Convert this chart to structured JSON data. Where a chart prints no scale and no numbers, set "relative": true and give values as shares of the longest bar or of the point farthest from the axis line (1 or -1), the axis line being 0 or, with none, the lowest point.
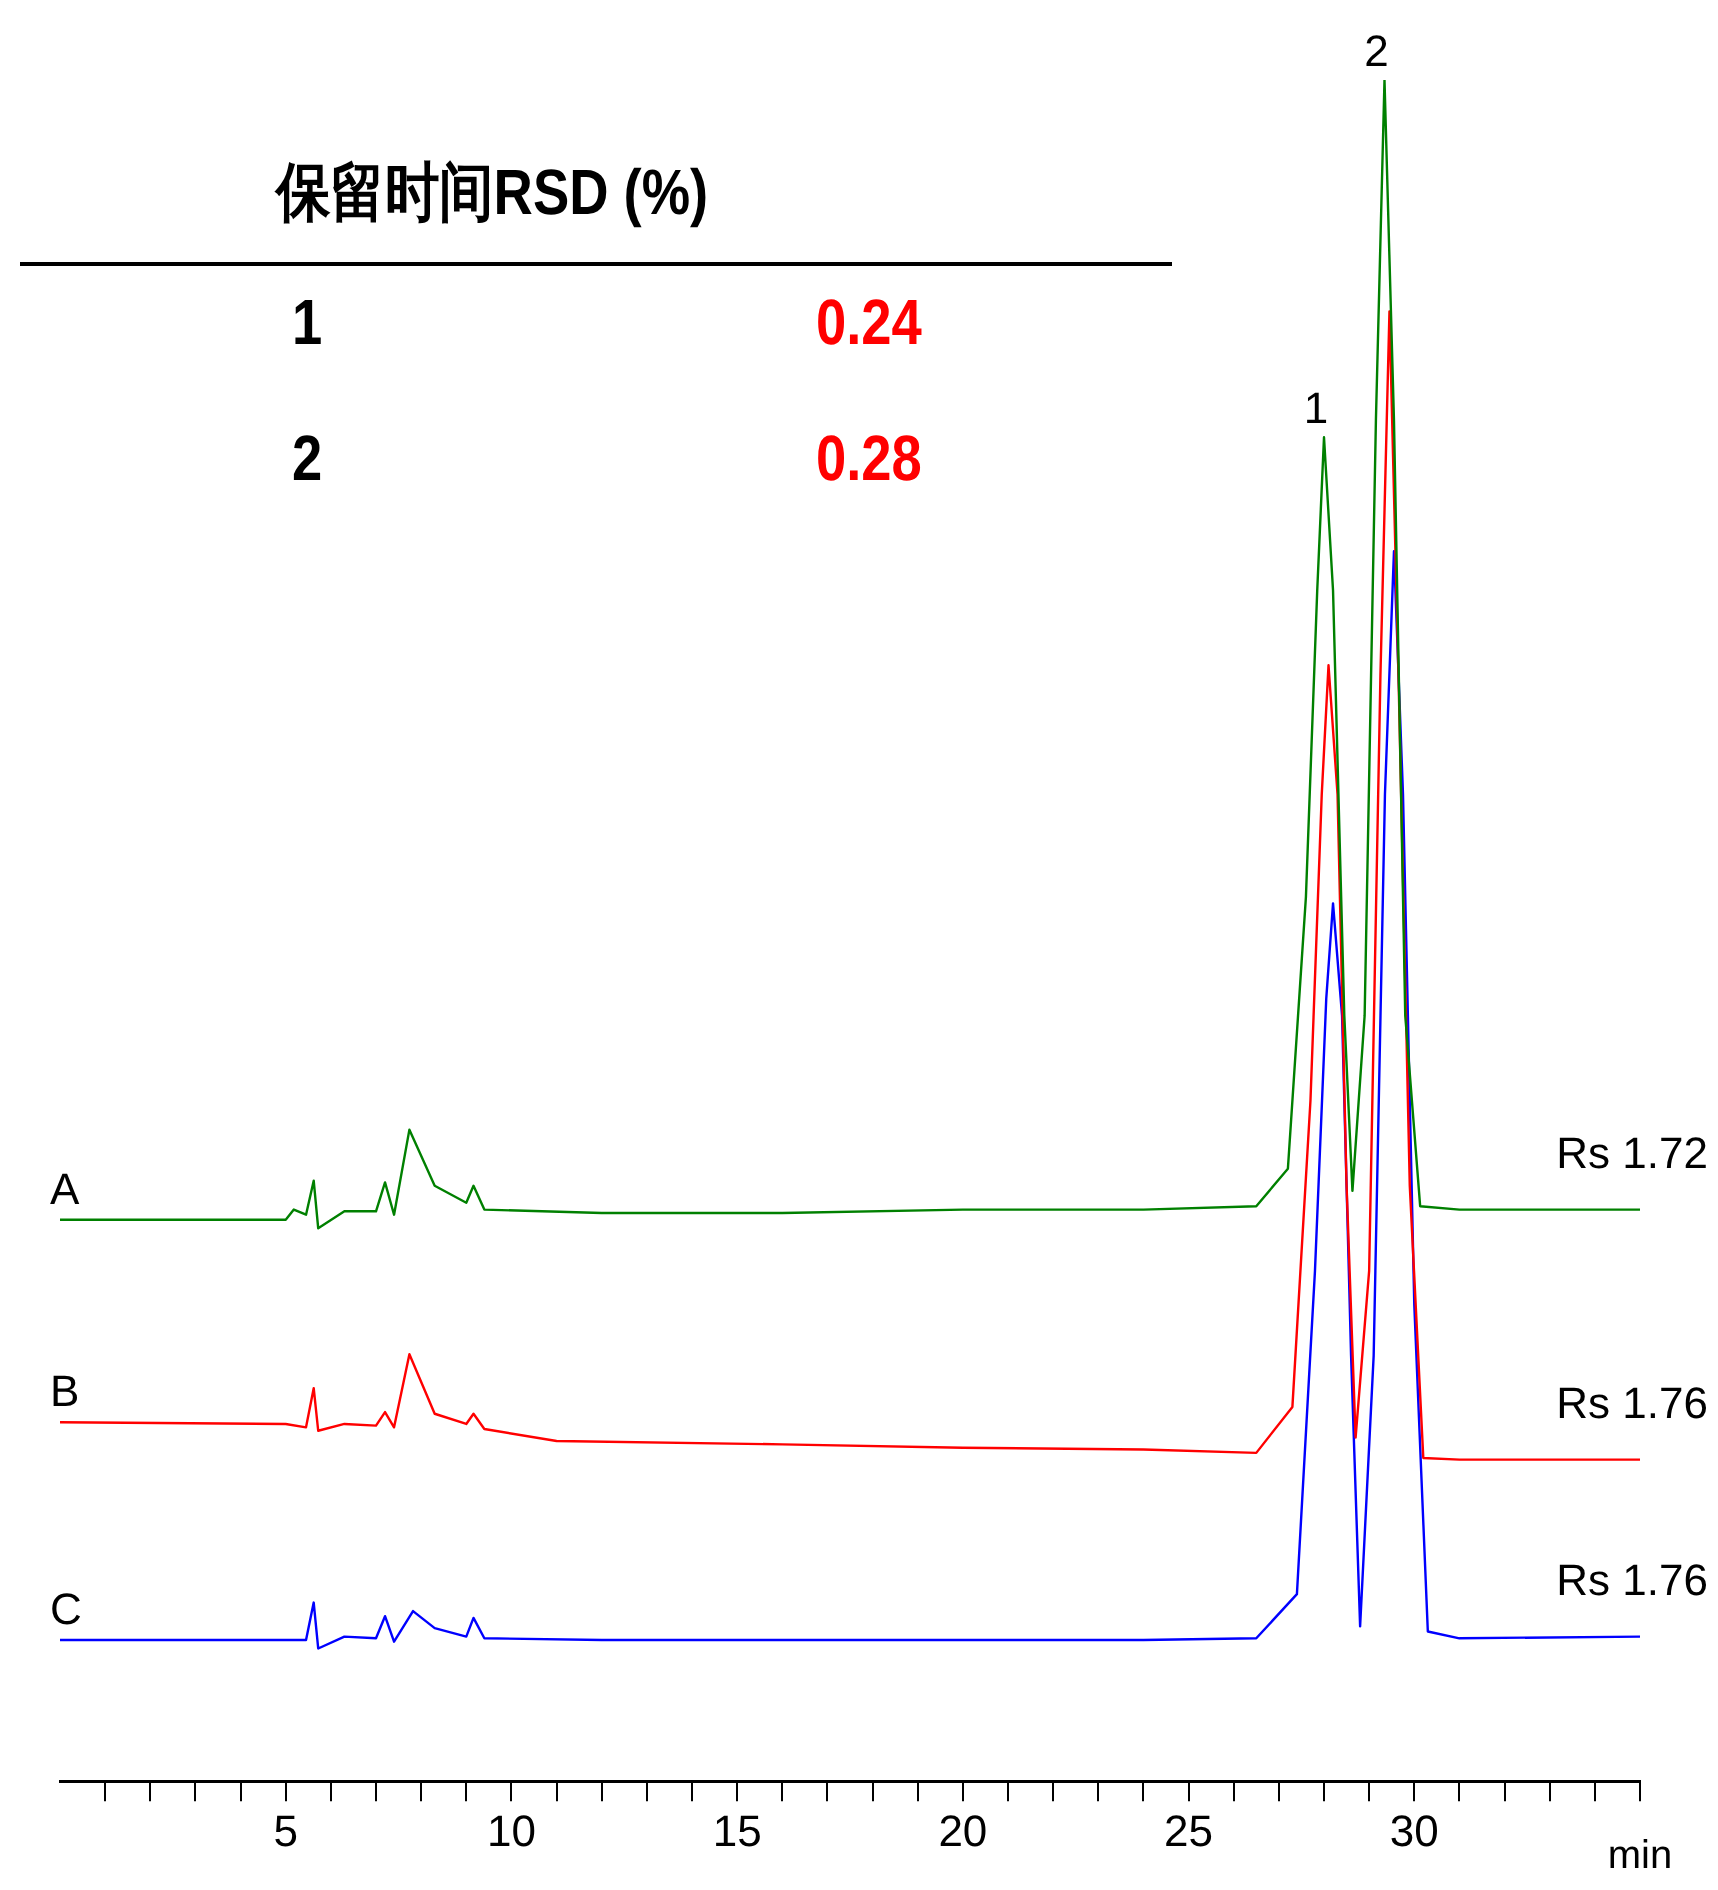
{
  "chart_data": {
    "type": "line",
    "relative": true,
    "xlabel": "min",
    "xlim": [
      0,
      35
    ],
    "xticks": [
      {
        "value": 1,
        "label": null
      },
      {
        "value": 2,
        "label": null
      },
      {
        "value": 3,
        "label": null
      },
      {
        "value": 4,
        "label": null
      },
      5,
      {
        "value": 6,
        "label": null
      },
      {
        "value": 7,
        "label": null
      },
      {
        "value": 8,
        "label": null
      },
      {
        "value": 9,
        "label": null
      },
      10,
      {
        "value": 11,
        "label": null
      },
      {
        "value": 12,
        "label": null
      },
      {
        "value": 13,
        "label": null
      },
      {
        "value": 14,
        "label": null
      },
      15,
      {
        "value": 16,
        "label": null
      },
      {
        "value": 17,
        "label": null
      },
      {
        "value": 18,
        "label": null
      },
      {
        "value": 19,
        "label": null
      },
      20,
      {
        "value": 21,
        "label": null
      },
      {
        "value": 22,
        "label": null
      },
      {
        "value": 23,
        "label": null
      },
      {
        "value": 24,
        "label": null
      },
      25,
      {
        "value": 26,
        "label": null
      },
      {
        "value": 27,
        "label": null
      },
      {
        "value": 28,
        "label": null
      },
      {
        "value": 29,
        "label": null
      },
      30,
      {
        "value": 31,
        "label": null
      },
      {
        "value": 32,
        "label": null
      },
      {
        "value": 33,
        "label": null
      },
      {
        "value": 34,
        "label": null
      },
      {
        "value": 35,
        "label": null
      }
    ],
    "grid": false,
    "legend": false,
    "tick_labels": "x",
    "marker": "none",
    "line_style": "solid",
    "series": [
      {
        "name": "A",
        "color": "#008000",
        "x": [
          0,
          5.0,
          5.18,
          5.45,
          5.62,
          5.72,
          6.3,
          7.0,
          7.2,
          7.4,
          7.74,
          8.3,
          9.0,
          9.16,
          9.4,
          12,
          16,
          20,
          24,
          26.5,
          27.2,
          27.6,
          27.85,
          28.0,
          28.2,
          28.45,
          28.63,
          28.9,
          29.15,
          29.34,
          29.55,
          29.8,
          30.13,
          31,
          35
        ],
        "values": [
          0.33,
          0.33,
          0.336,
          0.333,
          0.353,
          0.325,
          0.335,
          0.335,
          0.352,
          0.333,
          0.383,
          0.35,
          0.34,
          0.35,
          0.336,
          0.334,
          0.334,
          0.336,
          0.336,
          0.338,
          0.36,
          0.52,
          0.7,
          0.79,
          0.7,
          0.45,
          0.347,
          0.45,
          0.8,
          1.0,
          0.8,
          0.45,
          0.338,
          0.336,
          0.336
        ]
      },
      {
        "name": "B",
        "color": "#ff0000",
        "x": [
          0,
          5.0,
          5.45,
          5.62,
          5.72,
          6.3,
          7.0,
          7.2,
          7.4,
          7.74,
          8.3,
          9.0,
          9.16,
          9.4,
          11,
          16,
          20,
          24,
          26.5,
          27.3,
          27.7,
          27.95,
          28.1,
          28.3,
          28.5,
          28.7,
          29.0,
          29.25,
          29.45,
          29.65,
          29.9,
          30.2,
          31,
          35
        ],
        "values": [
          0.211,
          0.21,
          0.208,
          0.231,
          0.206,
          0.21,
          0.209,
          0.217,
          0.208,
          0.251,
          0.216,
          0.21,
          0.216,
          0.207,
          0.2,
          0.198,
          0.196,
          0.195,
          0.193,
          0.22,
          0.4,
          0.58,
          0.656,
          0.58,
          0.35,
          0.202,
          0.3,
          0.65,
          0.864,
          0.65,
          0.35,
          0.19,
          0.189,
          0.189
        ]
      },
      {
        "name": "C",
        "color": "#0000ff",
        "x": [
          0,
          5.0,
          5.45,
          5.62,
          5.72,
          6.3,
          7.0,
          7.2,
          7.4,
          7.82,
          8.3,
          9.0,
          9.16,
          9.4,
          12,
          16,
          20,
          24,
          26.5,
          27.4,
          27.8,
          28.05,
          28.2,
          28.4,
          28.6,
          28.8,
          29.1,
          29.35,
          29.55,
          29.75,
          30.0,
          30.3,
          31,
          35
        ],
        "values": [
          0.083,
          0.083,
          0.083,
          0.105,
          0.078,
          0.085,
          0.084,
          0.097,
          0.082,
          0.1,
          0.09,
          0.085,
          0.096,
          0.084,
          0.083,
          0.083,
          0.083,
          0.083,
          0.084,
          0.11,
          0.3,
          0.46,
          0.516,
          0.45,
          0.25,
          0.091,
          0.25,
          0.58,
          0.723,
          0.58,
          0.28,
          0.088,
          0.084,
          0.085
        ]
      }
    ],
    "annotations": [
      "保留时间RSD (%)",
      "1",
      "0.24",
      "2",
      "0.28",
      {
        "text": "1",
        "x": 28.0,
        "y": 0.79
      },
      {
        "text": "2",
        "x": 29.34,
        "y": 1.0
      },
      {
        "text": "Rs 1.72",
        "x": 35,
        "y": 0.336
      },
      {
        "text": "Rs 1.76",
        "x": 35,
        "y": 0.189
      },
      {
        "text": "Rs 1.76",
        "x": 35,
        "y": 0.085
      }
    ]
  }
}
